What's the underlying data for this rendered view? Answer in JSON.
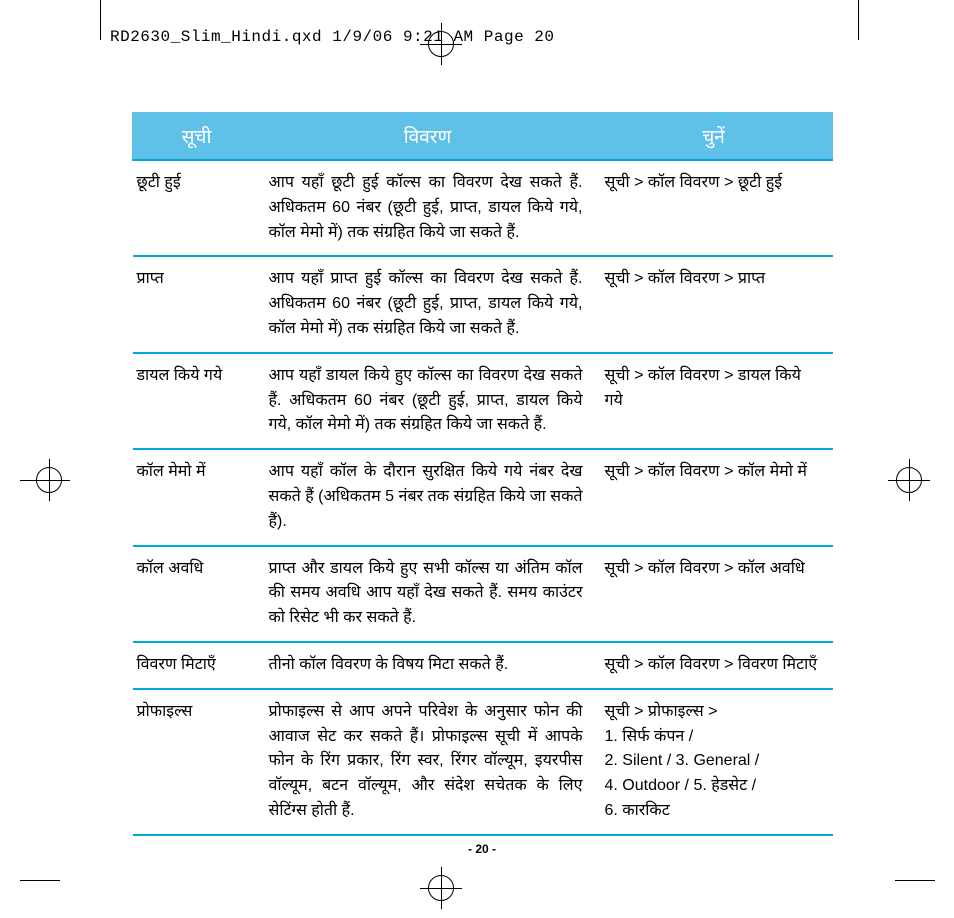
{
  "header": "RD2630_Slim_Hindi.qxd  1/9/06  9:21 AM  Page 20",
  "pageNum": "- 20 -",
  "table": {
    "headers": [
      "सूची",
      "विवरण",
      "चुनें"
    ],
    "rows": [
      {
        "c1": "छूटी हुई",
        "c2": "आप यहाँ छूटी हुई कॉल्स का विवरण देख सकते हैं. अधिकतम 60 नंबर (छूटी हुई, प्राप्त, डायल किये गये, कॉल मेमो में) तक संग्रहित किये जा सकते हैं.",
        "c3_html": "सूची &gt; कॉल विवरण &gt; छूटी हुई"
      },
      {
        "c1": "प्राप्त",
        "c2": "आप यहाँ प्राप्त हुई कॉल्स का विवरण देख सकते हैं. अधिकतम 60 नंबर (छूटी हुई, प्राप्त, डायल किये गये, कॉल मेमो में) तक संग्रहित किये जा सकते हैं.",
        "c3_html": "सूची &gt; कॉल विवरण &gt; प्राप्त"
      },
      {
        "c1": "डायल किये गये",
        "c2": "आप यहाँ डायल किये हुए कॉल्स का विवरण देख सकते हैं. अधिकतम 60 नंबर (छूटी हुई, प्राप्त, डायल किये गये, कॉल मेमो में) तक संग्रहित किये जा सकते हैं.",
        "c3_html": "सूची &gt; कॉल विवरण &gt; डायल किये गये"
      },
      {
        "c1": "कॉल मेमो में",
        "c2": "आप यहाँ कॉल के दौरान सुरक्षित किये गये नंबर देख सकते हैं (अधिकतम 5 नंबर तक संग्रहित किये जा सकते हैं).",
        "c3_html": "सूची &gt; कॉल विवरण &gt; कॉल मेमो में"
      },
      {
        "c1": "कॉल अवधि",
        "c2": "प्राप्त और डायल किये हुए सभी कॉल्स या अंतिम कॉल की समय अवधि आप यहाँ देख सकते हैं. समय काउंटर को रिसेट भी कर सकते हैं.",
        "c3_html": "सूची &gt; कॉल विवरण &gt; कॉल अवधि"
      },
      {
        "c1": "विवरण मिटाएँ",
        "c2": "तीनो कॉल विवरण के विषय मिटा सकते हैं.",
        "c3_html": "सूची &gt; कॉल विवरण &gt; विवरण मिटाएँ"
      },
      {
        "c1": "प्रोफाइल्स",
        "c2": "प्रोफाइल्स से आप अपने परिवेश के अनुसार फोन की आवाज सेट कर सकते हैं। प्रोफाइल्स सूची में आपके फोन के रिंग प्रकार, रिंग स्वर, रिंगर वॉल्यूम, इयरपीस वॉल्यूम, बटन वॉल्यूम, और संदेश सचेतक के लिए सेटिंग्स होती हैं.",
        "c3_html": "सूची &gt; प्रोफाइल्स &gt;<br>1. सिर्फ कंपन /<br><span class='nowrap'>2. Silent / 3. General /</span><br><span class='nowrap'>4. Outdoor / 5. हेडसेट /</span><br>6. कारकिट"
      }
    ]
  }
}
